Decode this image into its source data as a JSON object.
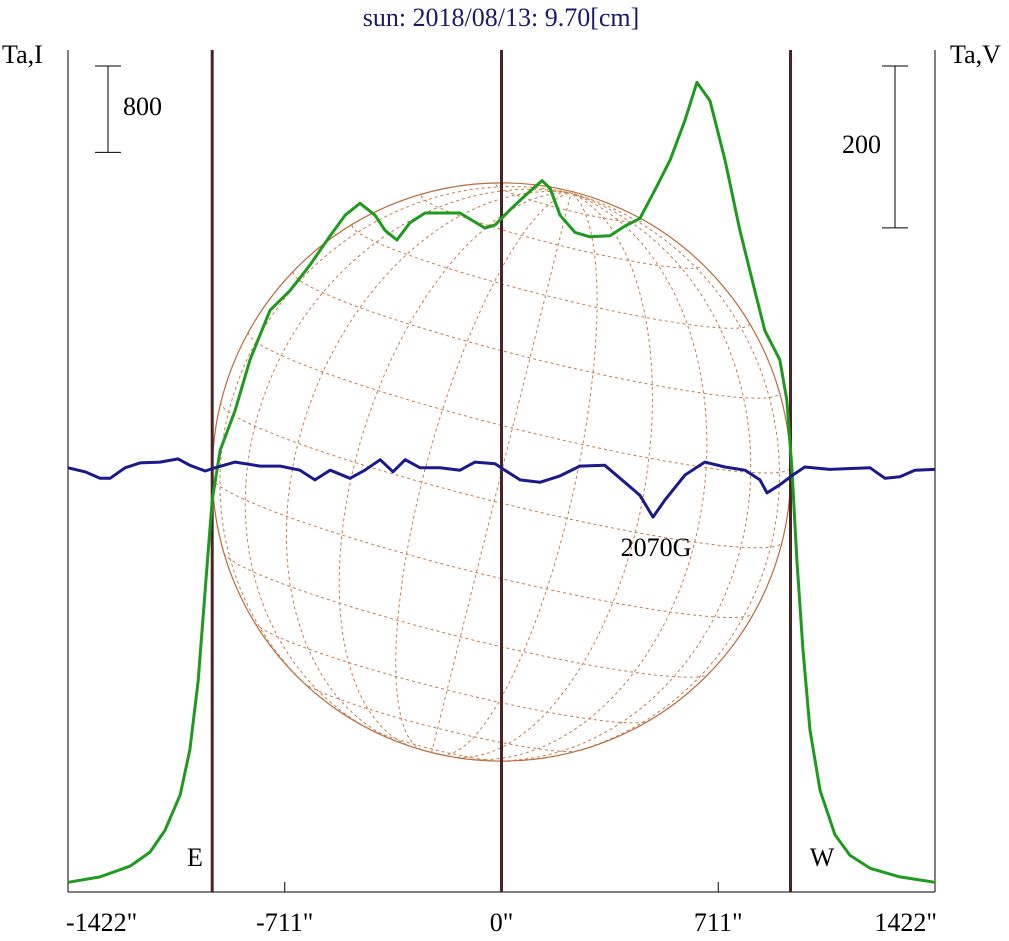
{
  "chart_data": {
    "type": "line",
    "title": "sun: 2018/08/13: 9.70[cm]",
    "ylabel": "Ta,I",
    "y2label": "Ta,V",
    "xlim": [
      -1422,
      1422
    ],
    "xticks": [
      {
        "value": -1422,
        "label": "-1422\""
      },
      {
        "value": -711,
        "label": "-711\""
      },
      {
        "value": 0,
        "label": "0\""
      },
      {
        "value": 711,
        "label": "711\""
      },
      {
        "value": 1422,
        "label": "1422\""
      }
    ],
    "ylim": [
      0,
      7800
    ],
    "y2lim": [
      -520,
      520
    ],
    "vlines": [
      -949,
      0,
      948
    ],
    "vline_color": "#4a2424",
    "scale_bars": [
      {
        "axis": "y",
        "value": 800
      },
      {
        "axis": "y2",
        "value": 200
      }
    ],
    "annotations": [
      "E",
      "W",
      "2070G"
    ],
    "series": [
      {
        "color": "#1e9a1e",
        "axis": "y",
        "x": [
          -1422,
          -1317,
          -1218,
          -1153,
          -1104,
          -1054,
          -1022,
          -995,
          -972,
          -949,
          -923,
          -874,
          -825,
          -759,
          -694,
          -628,
          -562,
          -513,
          -464,
          -415,
          -382,
          -343,
          -300,
          -251,
          -136,
          -54,
          -21,
          28,
          77,
          133,
          159,
          192,
          241,
          290,
          356,
          405,
          454,
          503,
          553,
          602,
          641,
          684,
          733,
          782,
          831,
          864,
          913,
          936,
          953,
          969,
          989,
          1012,
          1045,
          1094,
          1143,
          1209,
          1307,
          1422
        ],
        "values": [
          90,
          140,
          240,
          370,
          570,
          900,
          1320,
          1960,
          2800,
          3630,
          4090,
          4460,
          4930,
          5390,
          5570,
          5810,
          6080,
          6270,
          6380,
          6270,
          6130,
          6040,
          6200,
          6290,
          6290,
          6150,
          6180,
          6320,
          6450,
          6590,
          6520,
          6270,
          6110,
          6070,
          6080,
          6170,
          6240,
          6500,
          6780,
          7150,
          7500,
          7330,
          6780,
          6130,
          5570,
          5200,
          4930,
          4560,
          3910,
          3070,
          2240,
          1500,
          940,
          530,
          340,
          220,
          140,
          90
        ]
      },
      {
        "color": "#1a1a8c",
        "axis": "y2",
        "x": [
          -1422,
          -1366,
          -1317,
          -1284,
          -1235,
          -1186,
          -1120,
          -1061,
          -1022,
          -972,
          -940,
          -874,
          -792,
          -726,
          -661,
          -612,
          -562,
          -497,
          -448,
          -398,
          -356,
          -316,
          -267,
          -202,
          -136,
          -87,
          -21,
          11,
          61,
          126,
          192,
          257,
          339,
          389,
          454,
          497,
          536,
          602,
          667,
          733,
          799,
          848,
          871,
          913,
          956,
          995,
          1077,
          1209,
          1258,
          1307,
          1356,
          1422
        ],
        "values": [
          4,
          -1,
          -9,
          -9,
          4,
          10,
          11,
          15,
          7,
          0,
          4,
          11,
          6,
          6,
          1,
          -11,
          1,
          -9,
          1,
          14,
          -1,
          14,
          4,
          4,
          1,
          11,
          9,
          1,
          -11,
          -14,
          -6,
          6,
          7,
          -9,
          -30,
          -57,
          -36,
          -5,
          11,
          5,
          1,
          -11,
          -27,
          -17,
          -5,
          5,
          2,
          4,
          -9,
          -7,
          1,
          2
        ]
      }
    ]
  }
}
